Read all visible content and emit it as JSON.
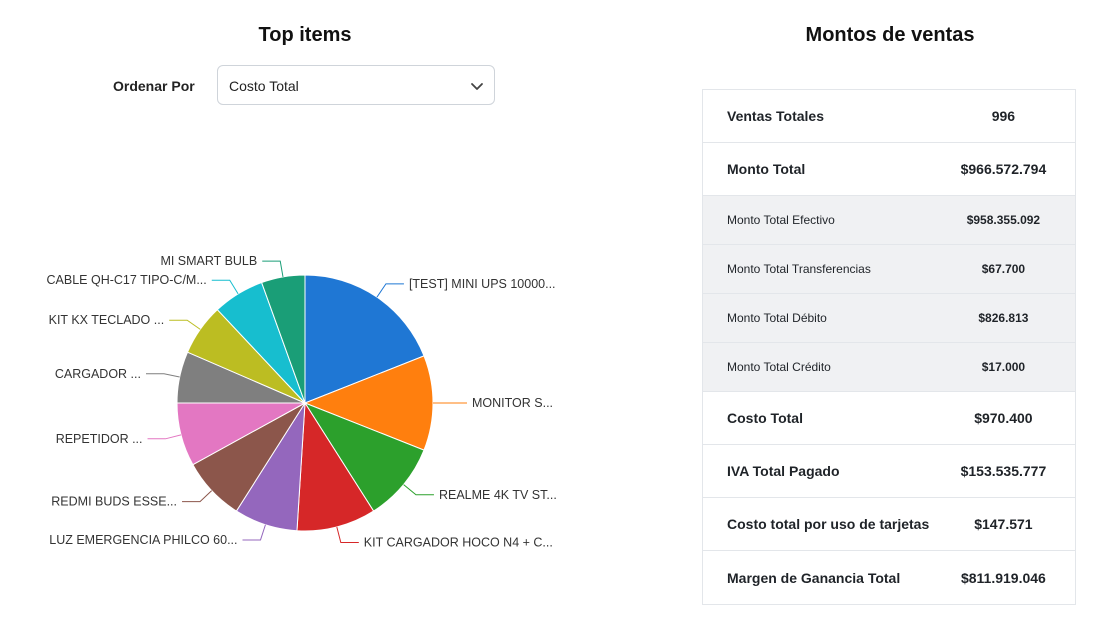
{
  "top_items": {
    "title": "Top items",
    "sort_label": "Ordenar Por",
    "sort_value": "Costo Total"
  },
  "chart_data": {
    "type": "pie",
    "slices": [
      {
        "label": "[TEST] MINI UPS 10000...",
        "value": 19,
        "color": "#1f77d4"
      },
      {
        "label": "MONITOR S...",
        "value": 12,
        "color": "#ff7f0e"
      },
      {
        "label": "REALME 4K TV ST...",
        "value": 10,
        "color": "#2ca02c"
      },
      {
        "label": "KIT CARGADOR HOCO N4 + C...",
        "value": 10,
        "color": "#d62728"
      },
      {
        "label": "LUZ EMERGENCIA PHILCO 60...",
        "value": 8,
        "color": "#9467bd"
      },
      {
        "label": "REDMI BUDS ESSE...",
        "value": 8,
        "color": "#8c564b"
      },
      {
        "label": "REPETIDOR ...",
        "value": 8,
        "color": "#e377c2"
      },
      {
        "label": "CARGADOR ...",
        "value": 6.5,
        "color": "#7f7f7f"
      },
      {
        "label": "KIT KX TECLADO ...",
        "value": 6.5,
        "color": "#bcbd22"
      },
      {
        "label": "CABLE QH-C17 TIPO-C/M...",
        "value": 6.5,
        "color": "#17becf"
      },
      {
        "label": "MI SMART BULB",
        "value": 5.5,
        "color": "#1a9e77"
      }
    ]
  },
  "sales": {
    "title": "Montos de ventas",
    "rows": [
      {
        "label": "Ventas Totales",
        "value": "996"
      },
      {
        "label": "Monto Total",
        "value": "$966.572.794"
      },
      {
        "label": "Monto Total Efectivo",
        "value": "$958.355.092"
      },
      {
        "label": "Monto Total Transferencias",
        "value": "$67.700"
      },
      {
        "label": "Monto Total Débito",
        "value": "$826.813"
      },
      {
        "label": "Monto Total Crédito",
        "value": "$17.000"
      },
      {
        "label": "Costo Total",
        "value": "$970.400"
      },
      {
        "label": "IVA Total Pagado",
        "value": "$153.535.777"
      },
      {
        "label": "Costo total por uso de tarjetas",
        "value": "$147.571"
      },
      {
        "label": "Margen de Ganancia Total",
        "value": "$811.919.046"
      }
    ]
  }
}
